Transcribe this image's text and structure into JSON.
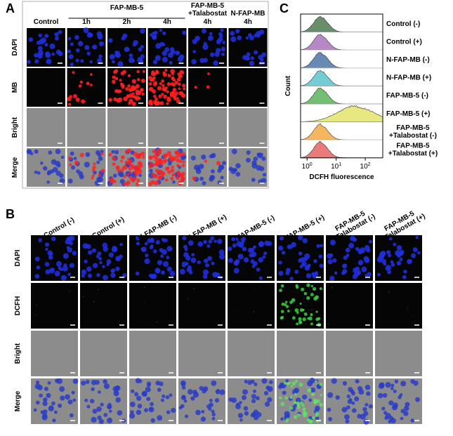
{
  "panel_a": {
    "label": "A",
    "group_headers": [
      {
        "lines": [
          "FAP-MB-5"
        ]
      },
      {
        "lines": [
          "FAP-MB-5",
          "+Talabostat"
        ]
      },
      {
        "lines": [
          "N-FAP-MB"
        ]
      }
    ],
    "column_headers": [
      "Control",
      "1h",
      "2h",
      "4h",
      "4h",
      "4h"
    ],
    "row_labels": [
      "DAPI",
      "MB",
      "Bright",
      "Merge"
    ]
  },
  "panel_b": {
    "label": "B",
    "column_headers": [
      {
        "lines": [
          "Control (-)"
        ]
      },
      {
        "lines": [
          "Control (+)"
        ]
      },
      {
        "lines": [
          "N-FAP-MB (-)"
        ]
      },
      {
        "lines": [
          "N-FAP-MB (+)"
        ]
      },
      {
        "lines": [
          "FAP-MB-5 (-)"
        ]
      },
      {
        "lines": [
          "FAP-MB-5 (+)"
        ]
      },
      {
        "lines": [
          "FAP-MB-5",
          "+Talabostat (-)"
        ]
      },
      {
        "lines": [
          "FAP-MB-5",
          "+Talabostat (+)"
        ]
      }
    ],
    "row_labels": [
      "DAPI",
      "DCFH",
      "Bright",
      "Merge"
    ]
  },
  "panel_c": {
    "label": "C",
    "y_label": "Count",
    "x_label": "DCFH fluorescence",
    "log_x": true,
    "xlim": [
      0.6,
      400
    ],
    "xticks": [
      {
        "value": 1,
        "base": "10",
        "exponent": "0"
      },
      {
        "value": 10,
        "base": "10",
        "exponent": "1"
      },
      {
        "value": 100,
        "base": "10",
        "exponent": "2"
      }
    ],
    "samples": [
      {
        "lines": [
          "Control (-)"
        ],
        "color": "#4f7a52",
        "peak": 3
      },
      {
        "lines": [
          "Control (+)"
        ],
        "color": "#a874b8",
        "peak": 3
      },
      {
        "lines": [
          "N-FAP-MB (-)"
        ],
        "color": "#4d74a6",
        "peak": 3
      },
      {
        "lines": [
          "N-FAP-MB (+)"
        ],
        "color": "#5cc4cc",
        "peak": 3
      },
      {
        "lines": [
          "FAP-MB-5 (-)"
        ],
        "color": "#5cb45c",
        "peak": 3
      },
      {
        "lines": [
          "FAP-MB-5 (+)"
        ],
        "color": "#e4e46c",
        "peak": 50
      },
      {
        "lines": [
          "FAP-MB-5",
          "+Talabostat (-)"
        ],
        "color": "#f4a844",
        "peak": 3
      },
      {
        "lines": [
          "FAP-MB-5",
          "+Talabostat (+)"
        ],
        "color": "#e86464",
        "peak": 3
      }
    ]
  }
}
